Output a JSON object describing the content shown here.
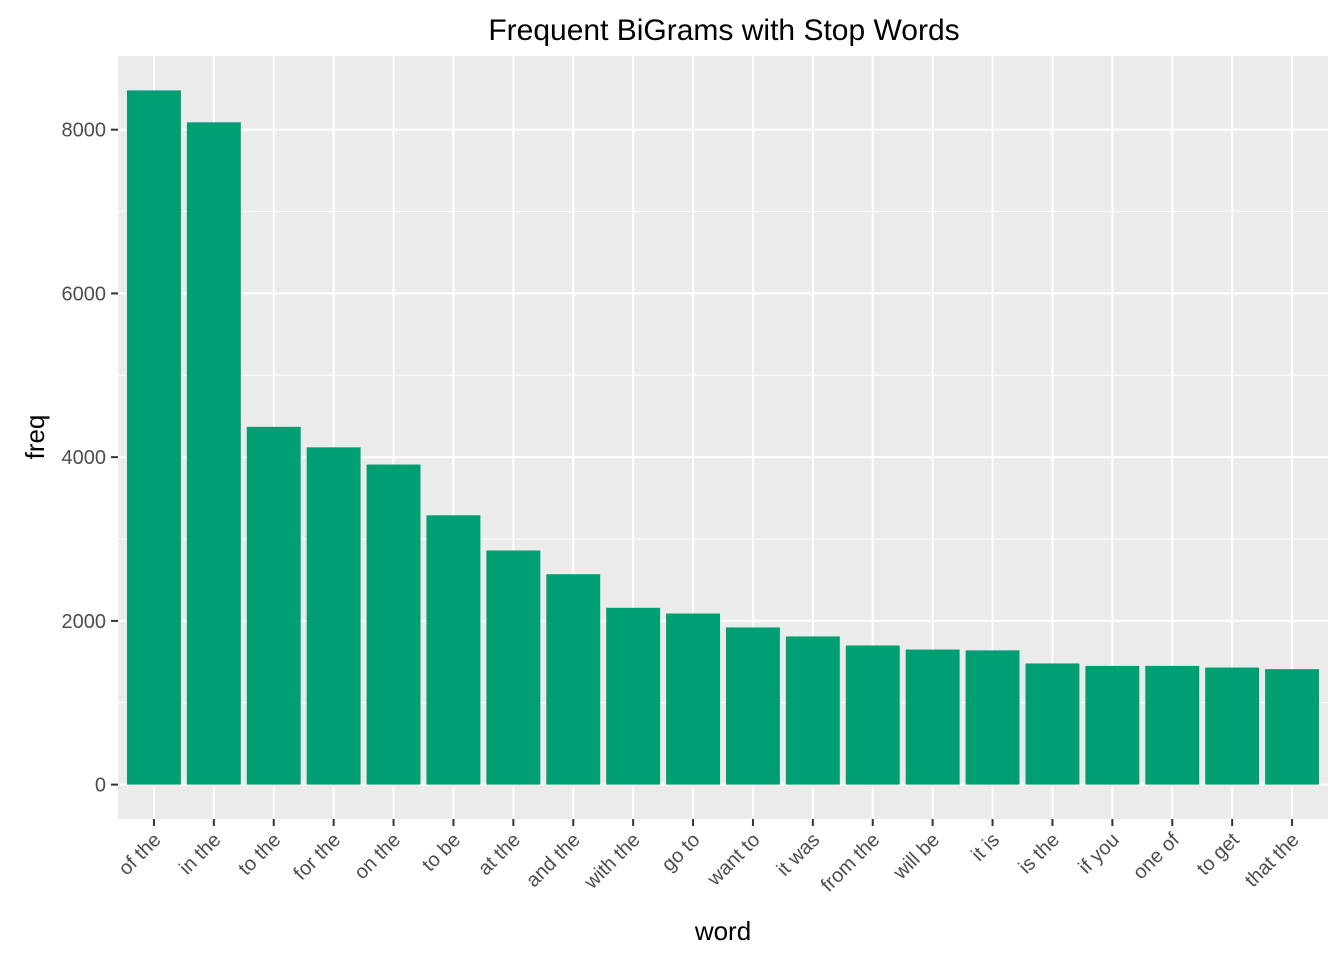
{
  "chart_data": {
    "type": "bar",
    "title": "Frequent BiGrams with Stop Words",
    "xlabel": "word",
    "ylabel": "freq",
    "categories": [
      "of the",
      "in the",
      "to the",
      "for the",
      "on the",
      "to be",
      "at the",
      "and the",
      "with the",
      "go to",
      "want to",
      "it was",
      "from the",
      "will be",
      "it is",
      "is the",
      "if you",
      "one of",
      "to get",
      "that the"
    ],
    "values": [
      8480,
      8090,
      4370,
      4120,
      3910,
      3290,
      2860,
      2570,
      2160,
      2090,
      1920,
      1810,
      1700,
      1650,
      1640,
      1480,
      1450,
      1450,
      1430,
      1410
    ],
    "ylim": [
      -420,
      8900
    ],
    "yticks": [
      0,
      2000,
      4000,
      6000,
      8000
    ],
    "ytick_labels": [
      "0",
      "2000",
      "4000",
      "6000",
      "8000"
    ],
    "grid": true,
    "colors": {
      "bar": "#009E73",
      "panel_background": "#EBEBEB",
      "grid_major": "#FFFFFF",
      "tick": "#333333"
    }
  }
}
